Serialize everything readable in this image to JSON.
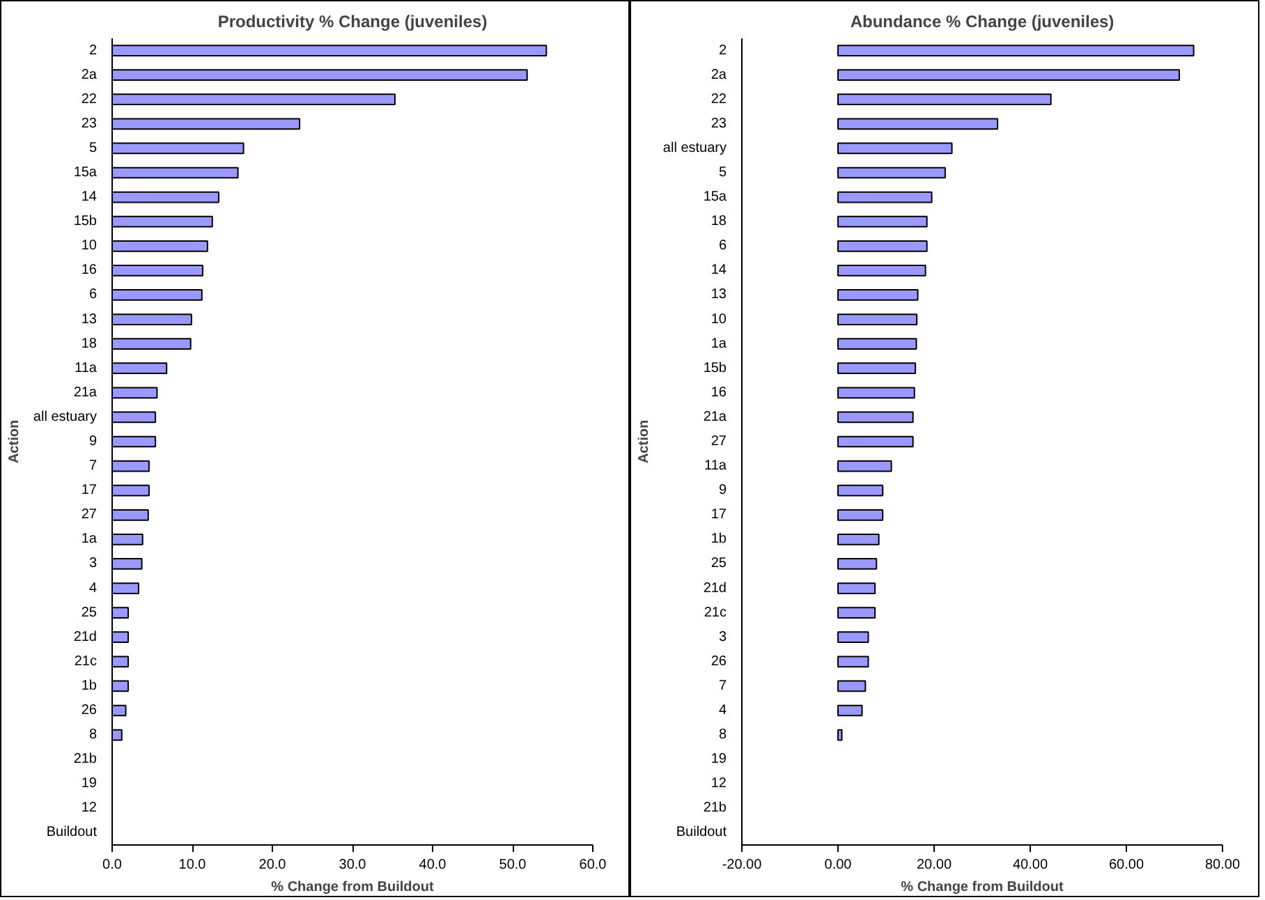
{
  "chart_data": [
    {
      "type": "bar",
      "orientation": "horizontal",
      "title": "Productivity % Change (juveniles)",
      "xlabel": "% Change from Buildout",
      "ylabel": "Action",
      "color": "#9999ff",
      "categories": [
        "2",
        "2a",
        "22",
        "23",
        "5",
        "15a",
        "14",
        "15b",
        "10",
        "16",
        "6",
        "13",
        "18",
        "11a",
        "21a",
        "all estuary",
        "9",
        "7",
        "17",
        "27",
        "1a",
        "3",
        "4",
        "25",
        "21d",
        "21c",
        "1b",
        "26",
        "8",
        "21b",
        "19",
        "12",
        "Buildout"
      ],
      "values": [
        54.2,
        51.8,
        35.3,
        23.4,
        16.4,
        15.7,
        13.3,
        12.5,
        11.9,
        11.3,
        11.2,
        9.9,
        9.8,
        6.8,
        5.6,
        5.4,
        5.4,
        4.6,
        4.6,
        4.5,
        3.8,
        3.7,
        3.3,
        2.0,
        2.0,
        2.0,
        2.0,
        1.7,
        1.2,
        0,
        0,
        0,
        0
      ],
      "xlim": [
        0,
        60
      ],
      "xticks": [
        {
          "value": 0,
          "label": "0.0"
        },
        {
          "value": 10,
          "label": "10.0"
        },
        {
          "value": 20,
          "label": "20.0"
        },
        {
          "value": 30,
          "label": "30.0"
        },
        {
          "value": 40,
          "label": "40.0"
        },
        {
          "value": 50,
          "label": "50.0"
        },
        {
          "value": 60,
          "label": "60.0"
        }
      ]
    },
    {
      "type": "bar",
      "orientation": "horizontal",
      "title": "Abundance % Change (juveniles)",
      "xlabel": "% Change from Buildout",
      "ylabel": "Action",
      "color": "#9999ff",
      "categories": [
        "2",
        "2a",
        "22",
        "23",
        "all estuary",
        "5",
        "15a",
        "18",
        "6",
        "14",
        "13",
        "10",
        "1a",
        "15b",
        "16",
        "21a",
        "27",
        "11a",
        "9",
        "17",
        "1b",
        "25",
        "21d",
        "21c",
        "3",
        "26",
        "7",
        "4",
        "8",
        "19",
        "12",
        "21b",
        "Buildout"
      ],
      "values": [
        74.0,
        71.0,
        44.3,
        33.2,
        23.7,
        22.3,
        19.5,
        18.5,
        18.5,
        18.2,
        16.6,
        16.4,
        16.3,
        16.1,
        15.9,
        15.6,
        15.6,
        11.1,
        9.3,
        9.3,
        8.5,
        8.0,
        7.7,
        7.7,
        6.3,
        6.3,
        5.7,
        5.0,
        0.8,
        0,
        0,
        null,
        0
      ],
      "xlim": [
        -20,
        80
      ],
      "xticks": [
        {
          "value": -20,
          "label": "-20.00"
        },
        {
          "value": 0,
          "label": "0.00"
        },
        {
          "value": 20,
          "label": "20.00"
        },
        {
          "value": 40,
          "label": "40.00"
        },
        {
          "value": 60,
          "label": "60.00"
        },
        {
          "value": 80,
          "label": "80.00"
        }
      ]
    }
  ]
}
